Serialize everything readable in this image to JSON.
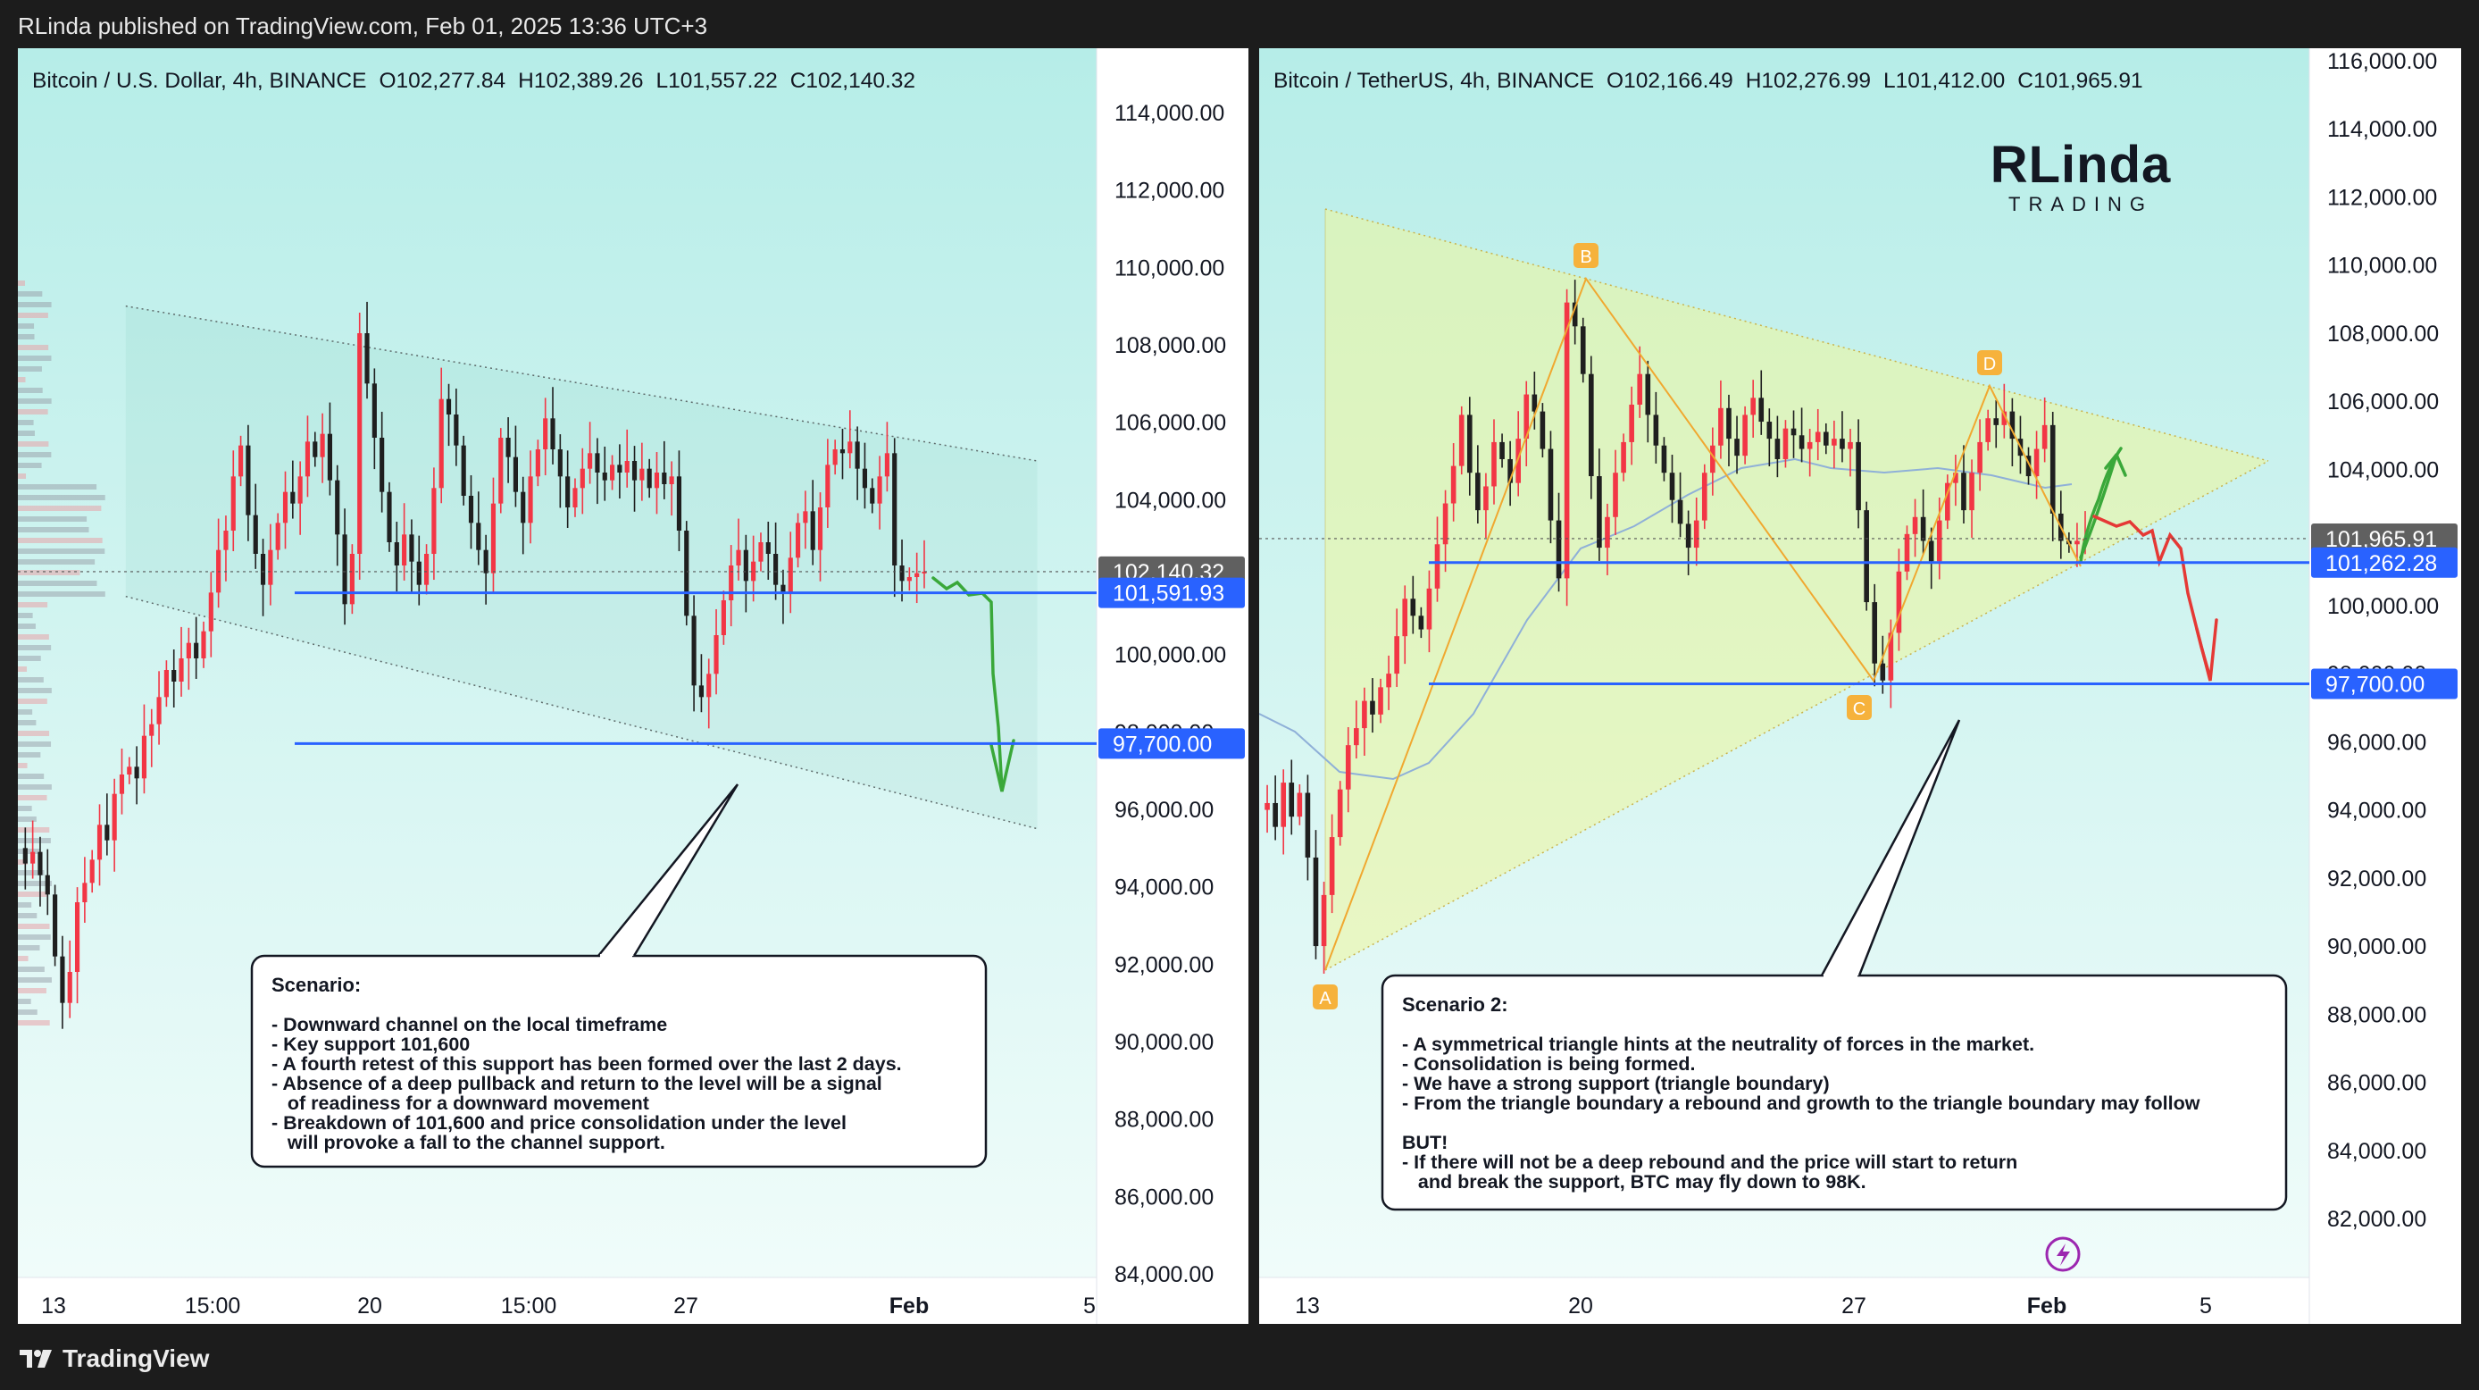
{
  "header": {
    "published": "RLinda published on TradingView.com, Feb 01, 2025 13:36 UTC+3"
  },
  "footer": {
    "brand": "TradingView"
  },
  "colors": {
    "up": "#f23645",
    "down": "#1f1f1f",
    "price_line": "#2962ff",
    "triangle": "#f6c34a",
    "bg_top": "#b6ede8",
    "bg_bottom": "#f0fcfa"
  },
  "chart_data": [
    {
      "type": "candlestick",
      "title": "Bitcoin / U.S. Dollar, 4h, BINANCE",
      "ohlc_label": {
        "O": "O102,277.84",
        "H": "H102,389.26",
        "L": "L101,557.22",
        "C": "C102,140.32"
      },
      "x_ticks": [
        "13",
        "15:00",
        "20",
        "15:00",
        "27",
        "Feb",
        "5"
      ],
      "y_ticks": [
        "114,000.00",
        "112,000.00",
        "110,000.00",
        "108,000.00",
        "106,000.00",
        "104,000.00",
        "102,000.00",
        "100,000.00",
        "98,000.00",
        "96,000.00",
        "94,000.00",
        "92,000.00",
        "90,000.00",
        "88,000.00",
        "86,000.00",
        "84,000.00"
      ],
      "ylim": [
        84000,
        116000
      ],
      "price_labels": [
        {
          "value": 102140.32,
          "text": "102,140.32",
          "kind": "last"
        },
        {
          "value": 101591.93,
          "text": "101,591.93",
          "kind": "level"
        },
        {
          "value": 97700,
          "text": "97,700.00",
          "kind": "level"
        }
      ],
      "levels": [
        101591.93,
        97700
      ],
      "channel": {
        "upper": [
          [
            0.1,
            109000
          ],
          [
            0.945,
            105000
          ]
        ],
        "lower": [
          [
            0.1,
            101500
          ],
          [
            0.945,
            95500
          ]
        ]
      },
      "forecast": [
        [
          102000,
          0
        ],
        [
          101800,
          0.02
        ],
        [
          101600,
          0.045
        ],
        [
          98700,
          0.07
        ],
        [
          96400,
          0.09
        ]
      ],
      "closes": [
        95000,
        94600,
        94900,
        94300,
        93800,
        92200,
        91000,
        91800,
        93600,
        94100,
        94700,
        95600,
        95200,
        96400,
        96900,
        97100,
        96800,
        97900,
        98200,
        98900,
        99600,
        99300,
        99900,
        100300,
        99900,
        100600,
        101600,
        102700,
        103200,
        104600,
        105400,
        103600,
        102600,
        101800,
        102700,
        103400,
        104200,
        103900,
        104600,
        105500,
        105100,
        105700,
        104500,
        103100,
        101300,
        102600,
        108300,
        107000,
        105600,
        104200,
        102900,
        102300,
        103100,
        102400,
        101800,
        102600,
        104300,
        106600,
        106200,
        105400,
        104100,
        103400,
        102700,
        102100,
        103900,
        105600,
        105100,
        104200,
        103400,
        104600,
        105300,
        106100,
        105300,
        104600,
        103800,
        104300,
        104800,
        105200,
        104700,
        104500,
        104900,
        104700,
        105000,
        104500,
        104800,
        104300,
        104700,
        104400,
        104600,
        103200,
        101000,
        99200,
        98900,
        99500,
        100500,
        101400,
        102300,
        102700,
        101900,
        102400,
        102900,
        102600,
        101800,
        101600,
        102500,
        103400,
        103700,
        102700,
        103800,
        104900,
        105300,
        105200,
        105500,
        104800,
        104300,
        103900,
        104600,
        105200,
        102300,
        101900,
        102000,
        102100,
        102140
      ]
    },
    {
      "type": "candlestick",
      "title": "Bitcoin / TetherUS, 4h, BINANCE",
      "ohlc_label": {
        "O": "O102,166.49",
        "H": "H102,276.99",
        "L": "L101,412.00",
        "C": "C101,965.91"
      },
      "x_ticks": [
        "13",
        "20",
        "27",
        "Feb",
        "5"
      ],
      "y_ticks": [
        "116,000.00",
        "114,000.00",
        "112,000.00",
        "110,000.00",
        "108,000.00",
        "106,000.00",
        "104,000.00",
        "102,000.00",
        "100,000.00",
        "98,000.00",
        "96,000.00",
        "94,000.00",
        "92,000.00",
        "90,000.00",
        "88,000.00",
        "86,000.00",
        "84,000.00",
        "82,000.00"
      ],
      "ylim": [
        80500,
        116500
      ],
      "price_labels": [
        {
          "value": 101965.91,
          "text": "101,965.91",
          "kind": "last"
        },
        {
          "value": 101262.28,
          "text": "101,262.28",
          "kind": "level"
        },
        {
          "value": 97700,
          "text": "97,700.00",
          "kind": "level"
        }
      ],
      "levels": [
        101262.28,
        97700
      ],
      "pattern_points": [
        {
          "label": "A",
          "value": 89500
        },
        {
          "label": "B",
          "value": 109600
        },
        {
          "label": "C",
          "value": 97700
        },
        {
          "label": "D",
          "value": 106200
        }
      ],
      "closes": [
        94000,
        94200,
        93500,
        94800,
        93800,
        94500,
        92600,
        90000,
        91500,
        93200,
        94600,
        95900,
        96400,
        97200,
        96800,
        97600,
        98000,
        99100,
        100200,
        99700,
        99300,
        100500,
        101800,
        103000,
        104100,
        105600,
        103900,
        102800,
        103500,
        104800,
        104300,
        103600,
        104900,
        106200,
        105700,
        104600,
        102500,
        100800,
        108900,
        108200,
        106800,
        103800,
        101700,
        102600,
        103900,
        104800,
        105900,
        106800,
        105600,
        104700,
        103900,
        103100,
        102400,
        101700,
        102500,
        103900,
        104700,
        105800,
        104900,
        104400,
        105600,
        106100,
        105400,
        104900,
        104300,
        105200,
        105000,
        104600,
        104800,
        105100,
        104700,
        104900,
        104600,
        104800,
        102800,
        100100,
        98300,
        97800,
        99200,
        101000,
        102100,
        102600,
        101900,
        101300,
        102500,
        103600,
        103900,
        102800,
        103900,
        104800,
        105500,
        105300,
        105700,
        104900,
        104400,
        103800,
        104600,
        105300,
        102700,
        101900,
        101800,
        101900,
        101965.91
      ]
    }
  ],
  "left_panel": {
    "note": {
      "title": "Scenario:",
      "lines": [
        "- Downward channel on the local timeframe",
        "- Key support 101,600",
        "- A fourth retest of this support has been formed over the last 2 days.",
        "- Absence of a deep pullback and return to the level will be a signal",
        "   of readiness for a downward movement",
        "- Breakdown of 101,600 and price consolidation under the level",
        "   will provoke a fall to the channel support."
      ]
    }
  },
  "right_panel": {
    "logo": {
      "top": "RLinda",
      "bottom": "TRADING"
    },
    "note": {
      "title": "Scenario 2:",
      "lines": [
        "- A symmetrical triangle hints at the neutrality of forces in the market.",
        "- Consolidation is being formed.",
        "- We have a strong support (triangle boundary)",
        "- From the triangle boundary a rebound and growth to the triangle boundary may follow",
        "",
        "BUT!",
        "- If there will not be a deep rebound and the price will start to return",
        "   and break the support, BTC may fly down to 98K."
      ]
    }
  }
}
